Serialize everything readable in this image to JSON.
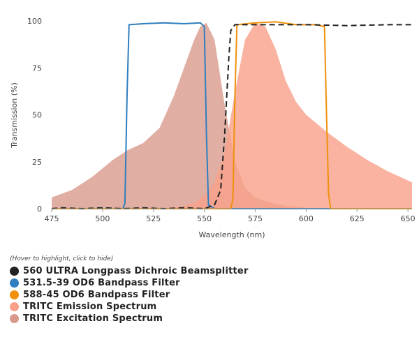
{
  "chart_data": {
    "type": "area",
    "xlabel": "Wavelength (nm)",
    "ylabel": "Transmission (%)",
    "xlim": [
      475,
      652
    ],
    "ylim": [
      0,
      100
    ],
    "xticks": [
      475,
      500,
      525,
      550,
      575,
      600,
      625,
      650
    ],
    "yticks": [
      0,
      25,
      50,
      75,
      100
    ],
    "grid": false,
    "legend_position": "bottom-left",
    "series": [
      {
        "name": "TRITC Excitation Spectrum",
        "kind": "filled-area",
        "color": "#d99a8c",
        "x": [
          475,
          485,
          495,
          505,
          512,
          520,
          528,
          535,
          540,
          545,
          548,
          551,
          555,
          560,
          565,
          570,
          575,
          580,
          585,
          590,
          595,
          600,
          610
        ],
        "y": [
          6,
          10,
          17,
          26,
          31,
          35,
          43,
          60,
          75,
          90,
          97,
          99,
          90,
          55,
          25,
          11,
          6,
          4,
          2.5,
          1.5,
          1,
          0.5,
          0
        ]
      },
      {
        "name": "TRITC Emission Spectrum",
        "kind": "filled-area",
        "color": "#f8a088",
        "x": [
          530,
          540,
          545,
          550,
          555,
          560,
          565,
          570,
          575,
          580,
          585,
          590,
          595,
          600,
          610,
          620,
          630,
          640,
          650,
          652
        ],
        "y": [
          0,
          1.5,
          3,
          7,
          14,
          30,
          62,
          90,
          99,
          97,
          85,
          68,
          57,
          50,
          41,
          33,
          26,
          20,
          15,
          14
        ]
      },
      {
        "name": "531.5-39 OD6 Bandpass Filter",
        "kind": "line",
        "color": "#2f7ebf",
        "x": [
          475,
          510,
          511,
          512,
          513,
          520,
          530,
          540,
          548,
          550,
          551,
          552,
          555,
          652
        ],
        "y": [
          0,
          0,
          3,
          60,
          98,
          98.5,
          99,
          98.5,
          99,
          97,
          40,
          2,
          0,
          0
        ]
      },
      {
        "name": "588-45 OD6 Bandpass Filter",
        "kind": "line",
        "color": "#f0900c",
        "x": [
          475,
          563,
          564,
          565,
          566,
          575,
          585,
          595,
          605,
          609,
          610,
          611,
          612,
          652
        ],
        "y": [
          0,
          0,
          5,
          60,
          98,
          99,
          99.5,
          98,
          98,
          97,
          50,
          8,
          0,
          0
        ]
      },
      {
        "name": "560 ULTRA Longpass Dichroic Beamsplitter",
        "kind": "dashed-line",
        "color": "#222222",
        "x": [
          475,
          480,
          490,
          500,
          510,
          520,
          530,
          540,
          550,
          555,
          558,
          560,
          562,
          563,
          565,
          580,
          600,
          620,
          640,
          652
        ],
        "y": [
          0,
          0.5,
          0,
          0.5,
          0,
          0.5,
          0,
          0.5,
          0,
          2,
          10,
          40,
          80,
          95,
          98,
          98,
          98,
          97.5,
          98,
          98
        ]
      }
    ]
  },
  "legend": {
    "hint": "(Hover to highlight, click to hide)",
    "items": [
      {
        "label": "560 ULTRA Longpass Dichroic Beamsplitter",
        "color": "#222222"
      },
      {
        "label": "531.5-39 OD6 Bandpass Filter",
        "color": "#2f7ebf"
      },
      {
        "label": "588-45 OD6 Bandpass Filter",
        "color": "#f0900c"
      },
      {
        "label": "TRITC Emission Spectrum",
        "color": "#f8a088"
      },
      {
        "label": "TRITC Excitation Spectrum",
        "color": "#d99a8c"
      }
    ]
  }
}
